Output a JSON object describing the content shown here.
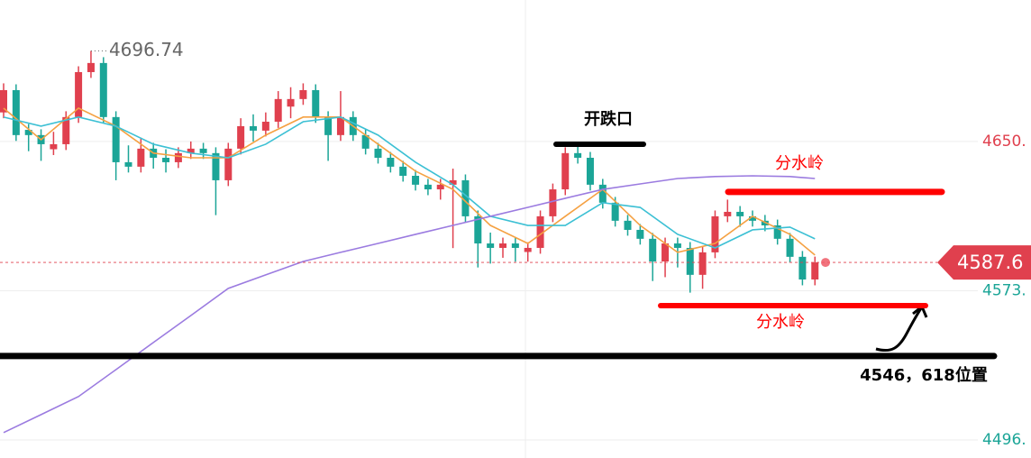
{
  "chart_data": {
    "type": "candlestick",
    "ylim": [
      4486.7,
      4723.0
    ],
    "yticks": [
      {
        "value": 4650,
        "label": "4650."
      },
      {
        "value": 4573,
        "label": "4573."
      },
      {
        "value": 4496,
        "label": "4496."
      }
    ],
    "grid": true,
    "up_color": "#e0404e",
    "down_color": "#1ba597",
    "candles": [
      [
        4665,
        4680,
        4662,
        4676.5
      ],
      [
        4676.5,
        4679.5,
        4650.3,
        4653.3
      ],
      [
        4656,
        4659,
        4645,
        4653.3
      ],
      [
        4653.3,
        4656.3,
        4640,
        4648.6
      ],
      [
        4646,
        4655,
        4643,
        4648.6
      ],
      [
        4648.6,
        4665.6,
        4645.6,
        4662.6
      ],
      [
        4662.6,
        4688.8,
        4659.6,
        4685.8
      ],
      [
        4685.8,
        4696.74,
        4682.8,
        4690.5
      ],
      [
        4690.5,
        4693.5,
        4659.6,
        4662.6
      ],
      [
        4662.6,
        4665.6,
        4630,
        4639.3
      ],
      [
        4639.3,
        4648,
        4634,
        4637.0
      ],
      [
        4637.0,
        4652,
        4634,
        4646.3
      ],
      [
        4646.3,
        4649.3,
        4636,
        4641.6
      ],
      [
        4641.6,
        4646,
        4634,
        4639.3
      ],
      [
        4639.3,
        4647,
        4636.3,
        4644.0
      ],
      [
        4644.0,
        4650,
        4641,
        4646.3
      ],
      [
        4646.3,
        4649.3,
        4641,
        4644.0
      ],
      [
        4644.0,
        4647,
        4612,
        4630.0
      ],
      [
        4630.0,
        4649.3,
        4627,
        4646.3
      ],
      [
        4646.3,
        4662,
        4643.3,
        4657.9
      ],
      [
        4657.9,
        4664,
        4650,
        4655.6
      ],
      [
        4655.6,
        4665,
        4652.6,
        4660.2
      ],
      [
        4660.2,
        4676,
        4657,
        4671.9
      ],
      [
        4668,
        4678,
        4662,
        4671.9
      ],
      [
        4671.9,
        4680,
        4668.9,
        4676.5
      ],
      [
        4676.5,
        4679.5,
        4659.6,
        4662.6
      ],
      [
        4662.6,
        4665.6,
        4640,
        4653.3
      ],
      [
        4653.3,
        4676,
        4650.3,
        4662.6
      ],
      [
        4662.6,
        4665.6,
        4650.3,
        4653.3
      ],
      [
        4653.3,
        4656.3,
        4643.3,
        4646.3
      ],
      [
        4646.3,
        4649.3,
        4638.6,
        4641.6
      ],
      [
        4641.6,
        4644.6,
        4634,
        4637.0
      ],
      [
        4637.0,
        4640,
        4629.3,
        4632.3
      ],
      [
        4632.3,
        4635.3,
        4624.7,
        4627.7
      ],
      [
        4627.7,
        4630.7,
        4622.3,
        4625.3
      ],
      [
        4625.3,
        4630.7,
        4620,
        4627.7
      ],
      [
        4627.7,
        4636,
        4595,
        4630.0
      ],
      [
        4630.0,
        4633,
        4608.4,
        4611.4
      ],
      [
        4611.4,
        4614.4,
        4585,
        4597.4
      ],
      [
        4597.4,
        4603,
        4587,
        4595.1
      ],
      [
        4595.1,
        4600.4,
        4590,
        4597.4
      ],
      [
        4597.4,
        4600.4,
        4588,
        4595.1
      ],
      [
        4593,
        4598,
        4588,
        4595.1
      ],
      [
        4595.1,
        4614.4,
        4592.1,
        4611.4
      ],
      [
        4611.4,
        4628.3,
        4608.4,
        4625.3
      ],
      [
        4625.3,
        4647,
        4622.3,
        4644.0
      ],
      [
        4644.0,
        4648,
        4638.6,
        4641.6
      ],
      [
        4641.6,
        4644.6,
        4624.7,
        4627.7
      ],
      [
        4627.7,
        4630.7,
        4615.4,
        4618.4
      ],
      [
        4618.4,
        4621.4,
        4606.1,
        4609.1
      ],
      [
        4609.1,
        4612.1,
        4601.4,
        4604.4
      ],
      [
        4604.4,
        4607.4,
        4596.8,
        4599.8
      ],
      [
        4599.8,
        4602.8,
        4578,
        4588.1
      ],
      [
        4588.1,
        4600.4,
        4580,
        4597.4
      ],
      [
        4597.4,
        4600.4,
        4585,
        4595.1
      ],
      [
        4595.1,
        4598.1,
        4572,
        4581.2
      ],
      [
        4581.2,
        4595.8,
        4574,
        4592.8
      ],
      [
        4592.8,
        4614.4,
        4589.8,
        4611.4
      ],
      [
        4611.4,
        4620,
        4608.4,
        4613.7
      ],
      [
        4613.7,
        4616.7,
        4606,
        4611.4
      ],
      [
        4611.4,
        4614.4,
        4606.1,
        4609.1
      ],
      [
        4609.1,
        4612.1,
        4603.7,
        4606.7
      ],
      [
        4606.7,
        4609.7,
        4596.8,
        4599.8
      ],
      [
        4599.8,
        4602.8,
        4587.5,
        4590.5
      ],
      [
        4590.5,
        4593.5,
        4575.8,
        4578.8
      ],
      [
        4578.8,
        4590.6,
        4575.8,
        4587.6
      ]
    ],
    "ma_x": [
      0,
      3,
      6,
      9,
      12,
      15,
      18,
      21,
      24,
      27,
      30,
      33,
      36,
      39,
      42,
      45,
      48,
      51,
      54,
      57,
      60,
      63,
      65
    ],
    "series": [
      {
        "color": "#f5a142",
        "values": [
          4667.2,
          4650.9,
          4667.2,
          4657.9,
          4644.0,
          4641.6,
          4641.6,
          4653.3,
          4662.6,
          4662.6,
          4648.6,
          4634.7,
          4625.3,
          4606.7,
          4597.4,
          4611.4,
          4625.3,
          4606.7,
          4592.8,
          4597.4,
          4611.4,
          4602.1,
          4591.4
        ]
      },
      {
        "color": "#3cc0d4",
        "values": [
          4662.6,
          4657.9,
          4662.6,
          4657.9,
          4648.6,
          4644.0,
          4641.6,
          4648.6,
          4660.2,
          4662.6,
          4653.3,
          4639.3,
          4627.7,
          4611.4,
          4606.7,
          4606.7,
          4618.4,
          4616.0,
          4602.1,
          4595.1,
          4604.4,
          4605.8,
          4599.8
        ]
      },
      {
        "color": "#9b7be0",
        "values": [
          4499.8,
          4509.1,
          4518.4,
          4532.3,
          4546.3,
          4560.2,
          4574.2,
          4581.2,
          4588.1,
          4592.8,
          4597.4,
          4602.1,
          4606.7,
          4611.4,
          4616.0,
          4620.7,
          4625.3,
          4628.1,
          4630.9,
          4631.9,
          4632.3,
          4631.9,
          4630.9
        ]
      }
    ],
    "high_label": {
      "value": 4696.74,
      "label": "4696.74"
    },
    "current_price": {
      "value": 4587.6,
      "label": "4587.6"
    },
    "annotations": [
      {
        "text": "开跌口",
        "value": 4648.6,
        "color": "#000000"
      },
      {
        "text": "分水岭",
        "value": 4624.0,
        "color": "#ff0000"
      },
      {
        "text": "分水岭",
        "value": 4565.3,
        "color": "#ff0000"
      },
      {
        "text": "4546，618位置",
        "value": 4539.3,
        "color": "#000000"
      }
    ]
  }
}
